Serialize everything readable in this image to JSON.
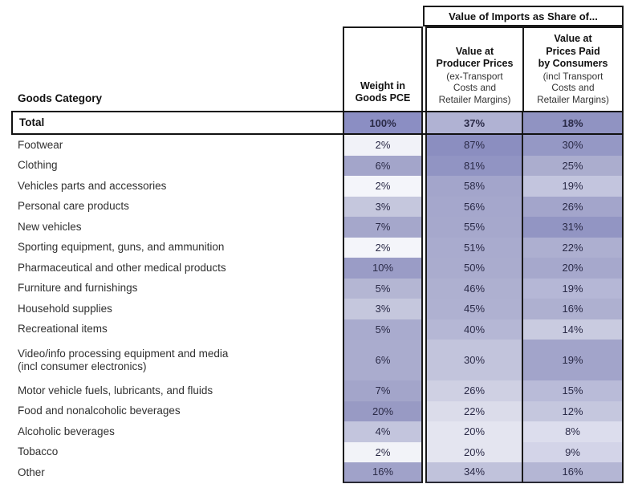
{
  "figure": {
    "banner": "Value of Imports as Share of...",
    "category_header": "Goods Category",
    "col_headers": {
      "weight_bold": "Weight in\nGoods PCE",
      "producer_bold": "Value at\nProducer Prices",
      "producer_note": "(ex-Transport\nCosts and\nRetailer Margins)",
      "consumer_bold": "Value at\nPrices Paid\nby Consumers",
      "consumer_note": "(incl Transport\nCosts and\nRetailer Margins)"
    }
  },
  "palette": {
    "border": "#1a1a1a",
    "value_text": "#2a2a47",
    "shade_darkest": "#8b8ec0",
    "shade_lightest": "#f4f5fa"
  },
  "chart_data": {
    "type": "heatmap",
    "title": "Value of Imports as Share of...",
    "unit": "%",
    "columns": [
      "Weight in Goods PCE",
      "Value at Producer Prices (ex-Transport Costs and Retailer Margins)",
      "Value at Prices Paid by Consumers (incl Transport Costs and Retailer Margins)"
    ],
    "rows": [
      {
        "label": "Total",
        "weight": 100,
        "producer": 37,
        "consumer": 18,
        "shades": [
          "#8b8ec3",
          "#b0b2d3",
          "#9093c2"
        ],
        "total": true
      },
      {
        "label": "Footwear",
        "weight": 2,
        "producer": 87,
        "consumer": 30,
        "shades": [
          "#f1f2f8",
          "#8b8ec0",
          "#9598c5"
        ]
      },
      {
        "label": "Clothing",
        "weight": 6,
        "producer": 81,
        "consumer": 25,
        "shades": [
          "#a3a5ca",
          "#9194c3",
          "#abadce"
        ]
      },
      {
        "label": "Vehicles parts and accessories",
        "weight": 2,
        "producer": 58,
        "consumer": 19,
        "shades": [
          "#f4f5fa",
          "#a3a5cb",
          "#c3c5de"
        ]
      },
      {
        "label": "Personal care products",
        "weight": 3,
        "producer": 56,
        "consumer": 26,
        "shades": [
          "#c5c7dd",
          "#a5a7cc",
          "#a3a5cb"
        ]
      },
      {
        "label": "New vehicles",
        "weight": 7,
        "producer": 55,
        "consumer": 31,
        "shades": [
          "#a5a7cb",
          "#a6a8cc",
          "#9295c3"
        ]
      },
      {
        "label": "Sporting equipment, guns, and ammunition",
        "weight": 2,
        "producer": 51,
        "consumer": 22,
        "shades": [
          "#f4f5fa",
          "#a9abce",
          "#adafd0"
        ]
      },
      {
        "label": "Pharmaceutical and other medical products",
        "weight": 10,
        "producer": 50,
        "consumer": 20,
        "shades": [
          "#9a9cc6",
          "#aaacce",
          "#a6a8cc"
        ]
      },
      {
        "label": "Furniture and furnishings",
        "weight": 5,
        "producer": 46,
        "consumer": 19,
        "shades": [
          "#b4b6d3",
          "#aeb0d0",
          "#b5b7d6"
        ]
      },
      {
        "label": "Household supplies",
        "weight": 3,
        "producer": 45,
        "consumer": 16,
        "shades": [
          "#c5c7dd",
          "#afb1d1",
          "#aeb0d0"
        ]
      },
      {
        "label": "Recreational items",
        "weight": 5,
        "producer": 40,
        "consumer": 14,
        "shades": [
          "#a9abce",
          "#b5b7d5",
          "#c9cbe0"
        ]
      },
      {
        "label": "Video/info processing equipment and media\n(incl consumer electronics)",
        "weight": 6,
        "producer": 30,
        "consumer": 19,
        "shades": [
          "#aaacce",
          "#c2c4dc",
          "#a2a4ca"
        ],
        "tall": true
      },
      {
        "label": "Motor vehicle fuels, lubricants, and fluids",
        "weight": 7,
        "producer": 26,
        "consumer": 15,
        "shades": [
          "#a3a5ca",
          "#cfd0e3",
          "#b9bbd8"
        ]
      },
      {
        "label": "Food and nonalcoholic beverages",
        "weight": 20,
        "producer": 22,
        "consumer": 12,
        "shades": [
          "#989ac4",
          "#dbdcea",
          "#c5c7de"
        ]
      },
      {
        "label": "Alcoholic beverages",
        "weight": 4,
        "producer": 20,
        "consumer": 8,
        "shades": [
          "#c3c5dd",
          "#e4e5f0",
          "#dcdded"
        ]
      },
      {
        "label": "Tobacco",
        "weight": 2,
        "producer": 20,
        "consumer": 9,
        "shades": [
          "#f2f3f8",
          "#e4e5f0",
          "#d3d4e8"
        ]
      },
      {
        "label": "Other",
        "weight": 16,
        "producer": 34,
        "consumer": 16,
        "shades": [
          "#a0a2c9",
          "#c0c2db",
          "#b4b6d4"
        ]
      }
    ]
  }
}
